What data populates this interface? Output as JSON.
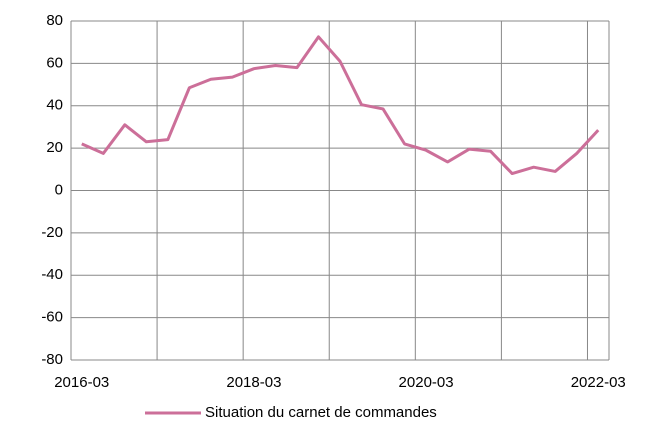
{
  "chart_data": {
    "type": "line",
    "categories": [
      "2016-03",
      null,
      null,
      null,
      null,
      null,
      null,
      null,
      "2018-03",
      null,
      null,
      null,
      null,
      null,
      null,
      null,
      "2020-03",
      null,
      null,
      null,
      null,
      null,
      null,
      null,
      "2022-03"
    ],
    "series": [
      {
        "name": "Situation du carnet de commandes",
        "color": "#cc6f99",
        "values": [
          22,
          17.5,
          31,
          23,
          24,
          48.5,
          52.5,
          53.5,
          57.5,
          59,
          58,
          72.5,
          61,
          40.5,
          38.5,
          22,
          19,
          13.5,
          19.5,
          18.5,
          8,
          11,
          9,
          17.5,
          28.5
        ]
      }
    ],
    "ylim": [
      -80,
      80
    ],
    "yticks": [
      -80,
      -60,
      -40,
      -20,
      0,
      20,
      40,
      60,
      80
    ],
    "grid": true,
    "legend": "bottom"
  }
}
